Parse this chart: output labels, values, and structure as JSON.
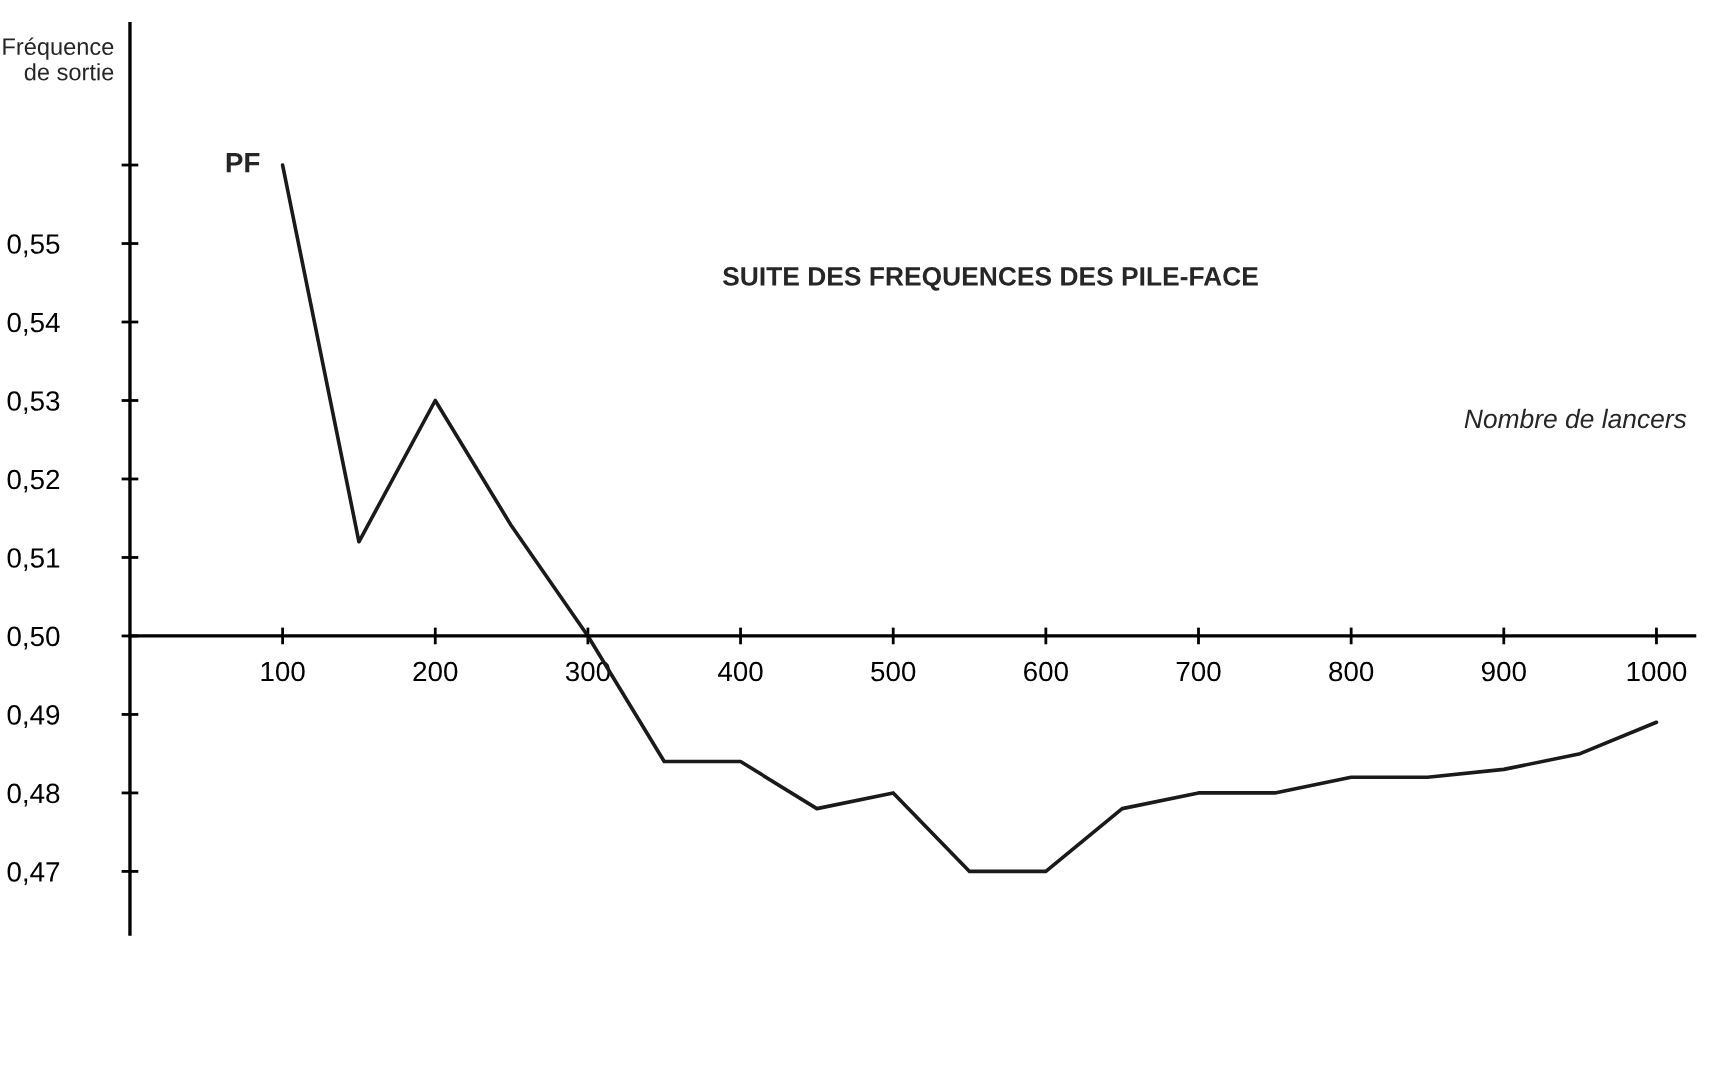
{
  "chart_data": {
    "type": "line",
    "title": "SUITE DES FREQUENCES DES PILE-FACE",
    "xlabel": "Nombre de lancers",
    "ylabel": "Fréquence\nde sortie",
    "annotations": [
      {
        "text": "PF",
        "x": 100,
        "y": 0.56
      }
    ],
    "x": [
      100,
      150,
      200,
      250,
      300,
      350,
      400,
      450,
      500,
      550,
      600,
      650,
      700,
      750,
      800,
      850,
      900,
      950,
      1000
    ],
    "series": [
      {
        "color": "#1a1a1a",
        "values": [
          0.56,
          0.512,
          0.53,
          0.514,
          0.5,
          0.484,
          0.484,
          0.478,
          0.48,
          0.47,
          0.47,
          0.478,
          0.48,
          0.48,
          0.482,
          0.482,
          0.483,
          0.485,
          0.489
        ]
      }
    ],
    "xlim": [
      0,
      1025
    ],
    "ylim": [
      0.462,
      0.578
    ],
    "xticks": [
      100,
      200,
      300,
      400,
      500,
      600,
      700,
      800,
      900,
      1000
    ],
    "yticks": [
      {
        "value": 0.47,
        "label": "0,47"
      },
      {
        "value": 0.48,
        "label": "0,48"
      },
      {
        "value": 0.49,
        "label": "0,49"
      },
      {
        "value": 0.5,
        "label": "0,50"
      },
      {
        "value": 0.51,
        "label": "0,51"
      },
      {
        "value": 0.52,
        "label": "0,52"
      },
      {
        "value": 0.53,
        "label": "0,53"
      },
      {
        "value": 0.54,
        "label": "0,54"
      },
      {
        "value": 0.55,
        "label": "0,55"
      },
      {
        "value": 0.56,
        "label": null
      }
    ],
    "grid": false,
    "legend": false,
    "marker": "none",
    "line_style": "solid"
  }
}
